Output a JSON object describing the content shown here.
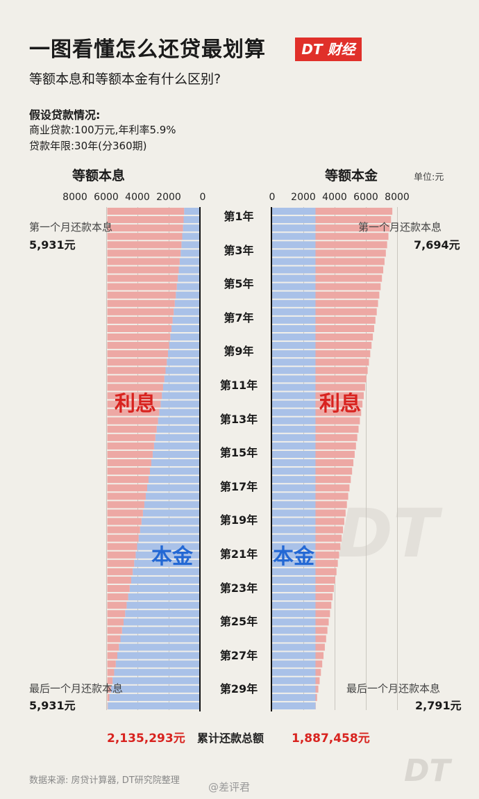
{
  "header": {
    "title": "一图看懂怎么还贷最划算",
    "brand": "DT 财经",
    "subtitle": "等额本息和等额本金有什么区别?"
  },
  "assumptions": {
    "heading": "假设贷款情况:",
    "line1": "商业贷款:100万元,年利率5.9%",
    "line2": "贷款年限:30年(分360期)"
  },
  "unit": "单位:元",
  "chart_data": {
    "type": "bar",
    "layout": "back-to-back stacked horizontal bars",
    "x_ticks_left": [
      "8000",
      "6000",
      "4000",
      "2000",
      "0"
    ],
    "x_ticks_right": [
      "0",
      "2000",
      "4000",
      "6000",
      "8000"
    ],
    "xlim": [
      0,
      8000
    ],
    "y_labels": [
      "第1年",
      "第3年",
      "第5年",
      "第7年",
      "第9年",
      "第11年",
      "第13年",
      "第15年",
      "第17年",
      "第19年",
      "第21年",
      "第23年",
      "第25年",
      "第27年",
      "第29年"
    ],
    "panels": [
      {
        "title": "等额本息",
        "series": [
          {
            "name": "本金",
            "color": "#a9c1e8",
            "first": 1014,
            "last": 5902
          },
          {
            "name": "利息",
            "color": "#eda8a4",
            "first": 4917,
            "last": 29
          }
        ],
        "first_label": "第一个月还款本息",
        "first_value": "5,931元",
        "last_label": "最后一个月还款本息",
        "last_value": "5,931元",
        "total": "2,135,293元"
      },
      {
        "title": "等额本金",
        "series": [
          {
            "name": "本金",
            "color": "#a9c1e8",
            "value": 2778
          },
          {
            "name": "利息",
            "color": "#eda8a4",
            "first": 4917,
            "last": 14
          }
        ],
        "first_label": "第一个月还款本息",
        "first_value": "7,694元",
        "last_label": "最后一个月还款本息",
        "last_value": "2,791元",
        "total": "1,887,458元"
      }
    ],
    "total_label": "累计还款总额"
  },
  "labels": {
    "interest": "利息",
    "principal": "本金"
  },
  "footer": {
    "source": "数据来源: 房贷计算器, DT研究院整理",
    "weibo": "@差评君",
    "watermark": "DT"
  }
}
